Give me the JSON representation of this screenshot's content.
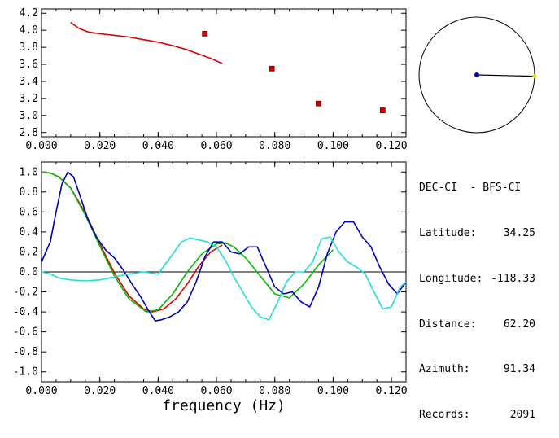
{
  "chart_data": [
    {
      "type": "scatter",
      "xlim": [
        0.0,
        0.125
      ],
      "ylim": [
        2.75,
        4.25
      ],
      "xticks": [
        "0.000",
        "0.020",
        "0.040",
        "0.060",
        "0.080",
        "0.100",
        "0.120"
      ],
      "yticks": [
        "2.8",
        "3.0",
        "3.2",
        "3.4",
        "3.6",
        "3.8",
        "4.0",
        "4.2"
      ],
      "series": [
        {
          "kind": "line",
          "color": "#dd0000",
          "x": [
            0.01,
            0.013,
            0.016,
            0.02,
            0.025,
            0.03,
            0.035,
            0.04,
            0.045,
            0.05,
            0.054,
            0.058,
            0.062
          ],
          "y": [
            4.09,
            4.02,
            3.98,
            3.96,
            3.94,
            3.92,
            3.89,
            3.86,
            3.82,
            3.77,
            3.72,
            3.67,
            3.61
          ]
        },
        {
          "kind": "points",
          "color": "#dd0000",
          "x": [
            0.056,
            0.079,
            0.095,
            0.117
          ],
          "y": [
            3.96,
            3.55,
            3.14,
            3.06
          ]
        }
      ]
    },
    {
      "type": "line",
      "xlim": [
        0.0,
        0.125
      ],
      "ylim": [
        -1.1,
        1.1
      ],
      "xticks": [
        "0.000",
        "0.020",
        "0.040",
        "0.060",
        "0.080",
        "0.100",
        "0.120"
      ],
      "yticks": [
        "1.0",
        "0.8",
        "0.6",
        "0.4",
        "0.2",
        "0.0",
        "-0.2",
        "-0.4",
        "-0.6",
        "-0.8",
        "-1.0"
      ],
      "xlabel": "frequency (Hz)",
      "zero_line": true,
      "series": [
        {
          "color": "#dd0000",
          "x": [
            0.0,
            0.003,
            0.006,
            0.01,
            0.015,
            0.02,
            0.025,
            0.03,
            0.035,
            0.038,
            0.042,
            0.046,
            0.05,
            0.054,
            0.058,
            0.062
          ],
          "y": [
            1.0,
            0.99,
            0.95,
            0.84,
            0.59,
            0.28,
            -0.01,
            -0.24,
            -0.37,
            -0.4,
            -0.37,
            -0.27,
            -0.12,
            0.06,
            0.2,
            0.27
          ]
        },
        {
          "color": "#00bb00",
          "x": [
            0.0,
            0.003,
            0.006,
            0.01,
            0.015,
            0.02,
            0.025,
            0.03,
            0.036,
            0.04,
            0.045,
            0.05,
            0.055,
            0.06,
            0.063,
            0.066,
            0.07,
            0.075,
            0.08,
            0.085,
            0.09,
            0.095,
            0.1
          ],
          "y": [
            1.0,
            0.99,
            0.95,
            0.84,
            0.57,
            0.26,
            -0.04,
            -0.27,
            -0.4,
            -0.38,
            -0.22,
            0.0,
            0.18,
            0.28,
            0.29,
            0.25,
            0.14,
            -0.04,
            -0.22,
            -0.26,
            -0.12,
            0.07,
            0.22
          ]
        },
        {
          "color": "#0000bb",
          "x": [
            0.0,
            0.003,
            0.005,
            0.007,
            0.009,
            0.011,
            0.013,
            0.016,
            0.019,
            0.022,
            0.025,
            0.028,
            0.031,
            0.034,
            0.037,
            0.039,
            0.041,
            0.044,
            0.047,
            0.05,
            0.053,
            0.056,
            0.059,
            0.062,
            0.065,
            0.068,
            0.071,
            0.074,
            0.077,
            0.08,
            0.083,
            0.086,
            0.089,
            0.092,
            0.095,
            0.098,
            0.101,
            0.104,
            0.107,
            0.11,
            0.113,
            0.116,
            0.119,
            0.122,
            0.125
          ],
          "y": [
            0.1,
            0.3,
            0.6,
            0.88,
            1.0,
            0.95,
            0.78,
            0.52,
            0.34,
            0.22,
            0.14,
            0.02,
            -0.12,
            -0.25,
            -0.4,
            -0.49,
            -0.48,
            -0.45,
            -0.4,
            -0.3,
            -0.1,
            0.15,
            0.3,
            0.3,
            0.2,
            0.18,
            0.25,
            0.25,
            0.05,
            -0.15,
            -0.22,
            -0.2,
            -0.3,
            -0.35,
            -0.15,
            0.18,
            0.4,
            0.5,
            0.5,
            0.35,
            0.25,
            0.05,
            -0.12,
            -0.22,
            -0.1
          ]
        },
        {
          "color": "#22dddd",
          "x": [
            0.0,
            0.003,
            0.006,
            0.01,
            0.015,
            0.02,
            0.025,
            0.03,
            0.035,
            0.04,
            0.045,
            0.048,
            0.051,
            0.054,
            0.057,
            0.06,
            0.063,
            0.066,
            0.069,
            0.072,
            0.075,
            0.078,
            0.081,
            0.084,
            0.087,
            0.09,
            0.093,
            0.096,
            0.099,
            0.102,
            0.105,
            0.108,
            0.111,
            0.114,
            0.117,
            0.12,
            0.123,
            0.125
          ],
          "y": [
            0.0,
            -0.02,
            -0.06,
            -0.08,
            -0.09,
            -0.08,
            -0.05,
            -0.02,
            0.0,
            -0.02,
            0.18,
            0.3,
            0.34,
            0.32,
            0.3,
            0.25,
            0.12,
            -0.05,
            -0.2,
            -0.35,
            -0.45,
            -0.48,
            -0.3,
            -0.1,
            0.0,
            0.0,
            0.1,
            0.33,
            0.35,
            0.2,
            0.1,
            0.05,
            -0.02,
            -0.2,
            -0.37,
            -0.35,
            -0.15,
            -0.1
          ]
        }
      ]
    }
  ],
  "station": {
    "title": "DEC-CI  - BFS-CI",
    "rows": [
      {
        "label": "Latitude:",
        "value": "34.25"
      },
      {
        "label": "Longitude:",
        "value": "-118.33"
      },
      {
        "label": "Distance:",
        "value": "62.20"
      },
      {
        "label": "Azimuth:",
        "value": "91.34"
      },
      {
        "label": "Records:",
        "value": "2091"
      }
    ],
    "azimuth_deg": 91.34,
    "marker_colors": {
      "center": "#0000bb",
      "edge": "#dddd00"
    }
  }
}
